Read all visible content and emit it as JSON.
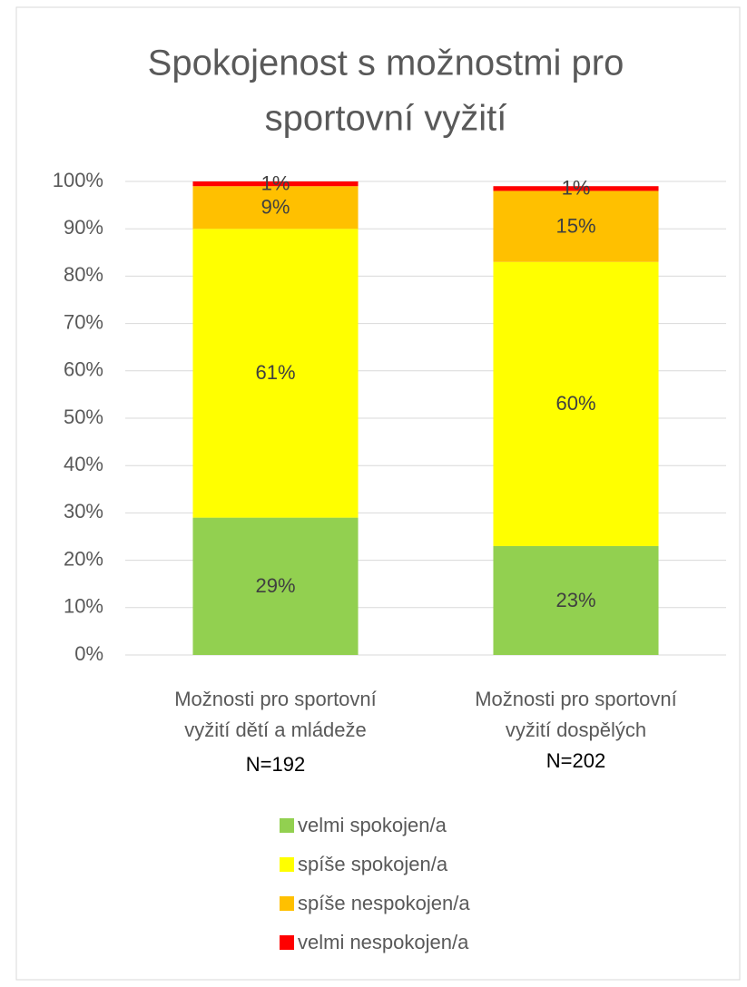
{
  "chart_data": {
    "type": "stacked_bar",
    "title": [
      "Spokojenost s možnostmi pro",
      "sportovní vyžití"
    ],
    "categories": [
      [
        "Možnosti pro sportovní",
        "vyžití dětí a mládeže"
      ],
      [
        "Možnosti pro sportovní",
        "vyžití dospělých"
      ]
    ],
    "category_notes": [
      "N=192",
      "N=202"
    ],
    "series": [
      {
        "name": "velmi spokojen/a",
        "color": "#92d050",
        "values": [
          29,
          23
        ],
        "value_labels": [
          "29%",
          "23%"
        ]
      },
      {
        "name": "spíše spokojen/a",
        "color": "#ffff00",
        "values": [
          61,
          60
        ],
        "value_labels": [
          "61%",
          "60%"
        ]
      },
      {
        "name": "spíše nespokojen/a",
        "color": "#ffc000",
        "values": [
          9,
          15
        ],
        "value_labels": [
          "9%",
          "15%"
        ]
      },
      {
        "name": "velmi nespokojen/a",
        "color": "#ff0000",
        "values": [
          1,
          1
        ],
        "value_labels": [
          "1%",
          "1%"
        ]
      }
    ],
    "ylim": [
      0,
      100
    ],
    "yticks": [
      {
        "value": 0,
        "label": "0%"
      },
      {
        "value": 10,
        "label": "10%"
      },
      {
        "value": 20,
        "label": "20%"
      },
      {
        "value": 30,
        "label": "30%"
      },
      {
        "value": 40,
        "label": "40%"
      },
      {
        "value": 50,
        "label": "50%"
      },
      {
        "value": 60,
        "label": "60%"
      },
      {
        "value": 70,
        "label": "70%"
      },
      {
        "value": 80,
        "label": "80%"
      },
      {
        "value": 90,
        "label": "90%"
      },
      {
        "value": 100,
        "label": "100%"
      }
    ],
    "grid": true,
    "legend": "bottom"
  }
}
